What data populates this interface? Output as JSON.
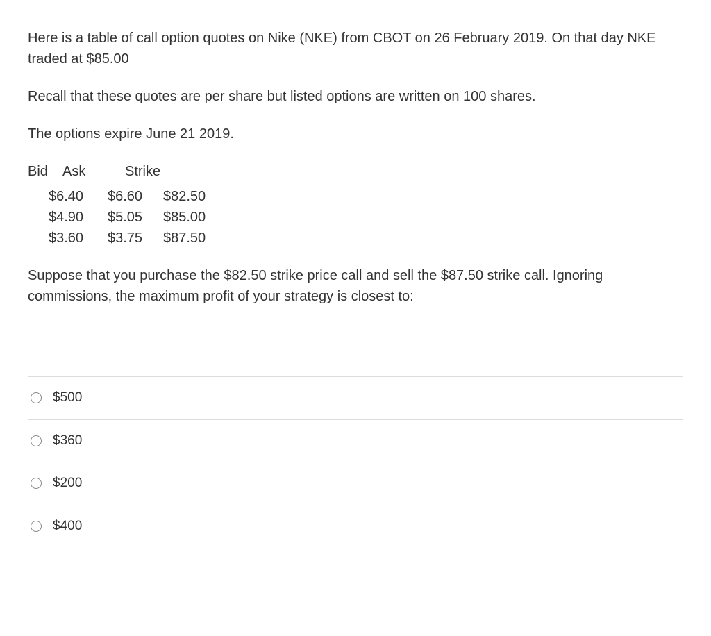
{
  "intro": {
    "p1": "Here is a table of call option quotes on Nike (NKE) from CBOT on 26 February 2019. On that day NKE traded at $85.00",
    "p2": "Recall that these quotes are per share but listed options are written on 100 shares.",
    "p3": "The options expire June 21 2019."
  },
  "table": {
    "headers": {
      "bid": "Bid",
      "ask": "Ask",
      "strike": "Strike"
    },
    "rows": [
      {
        "bid": "$6.40",
        "ask": "$6.60",
        "strike": "$82.50"
      },
      {
        "bid": "$4.90",
        "ask": "$5.05",
        "strike": "$85.00"
      },
      {
        "bid": "$3.60",
        "ask": "$3.75",
        "strike": "$87.50"
      }
    ]
  },
  "question": "Suppose that you purchase the $82.50 strike price call and sell the $87.50 strike call. Ignoring commissions, the maximum profit of your strategy is closest to:",
  "options": [
    {
      "label": "$500"
    },
    {
      "label": "$360"
    },
    {
      "label": "$200"
    },
    {
      "label": "$400"
    }
  ],
  "styling": {
    "text_color": "#333333",
    "background_color": "#ffffff",
    "border_color": "#dddddd",
    "radio_border_color": "#888888",
    "font_size_body": 20,
    "font_size_option": 19
  }
}
